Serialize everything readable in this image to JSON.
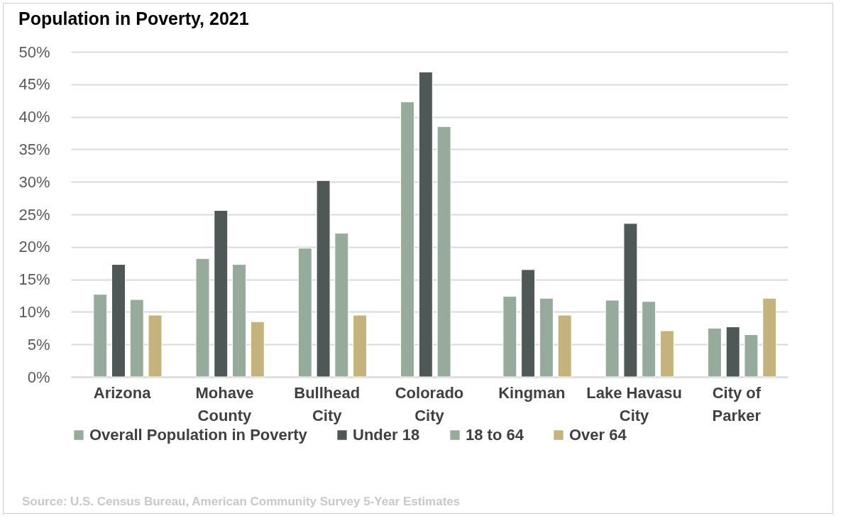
{
  "chart_data": {
    "type": "bar",
    "title": "Population in Poverty, 2021",
    "categories": [
      "Arizona",
      "Mohave County",
      "Bullhead City",
      "Colorado City",
      "Kingman",
      "Lake Havasu City",
      "City of Parker"
    ],
    "series": [
      {
        "name": "Overall Population in Poverty",
        "color": "#97ab9c",
        "values": [
          12.7,
          18.2,
          19.8,
          42.3,
          12.4,
          11.8,
          7.5
        ]
      },
      {
        "name": "Under 18",
        "color": "#4f5757",
        "values": [
          17.3,
          25.6,
          30.2,
          46.9,
          16.5,
          23.6,
          7.7
        ]
      },
      {
        "name": "18 to 64",
        "color": "#97ab9c",
        "values": [
          11.9,
          17.3,
          22.1,
          38.5,
          12.1,
          11.6,
          6.5
        ]
      },
      {
        "name": "Over 64",
        "color": "#c4b37c",
        "values": [
          9.5,
          8.5,
          9.5,
          null,
          9.5,
          7.1,
          12.1
        ]
      }
    ],
    "ylim": [
      0,
      50
    ],
    "yticks": [
      {
        "value": 0,
        "label": "0%"
      },
      {
        "value": 5,
        "label": "5%"
      },
      {
        "value": 10,
        "label": "10%"
      },
      {
        "value": 15,
        "label": "15%"
      },
      {
        "value": 20,
        "label": "20%"
      },
      {
        "value": 25,
        "label": "25%"
      },
      {
        "value": 30,
        "label": "30%"
      },
      {
        "value": 35,
        "label": "35%"
      },
      {
        "value": 40,
        "label": "40%"
      },
      {
        "value": 45,
        "label": "45%"
      },
      {
        "value": 50,
        "label": "50%"
      }
    ],
    "grid": "y",
    "legend": "bottom",
    "annotations": [
      "Source: U.S. Census Bureau, American Community Survey 5-Year Estimates"
    ]
  }
}
